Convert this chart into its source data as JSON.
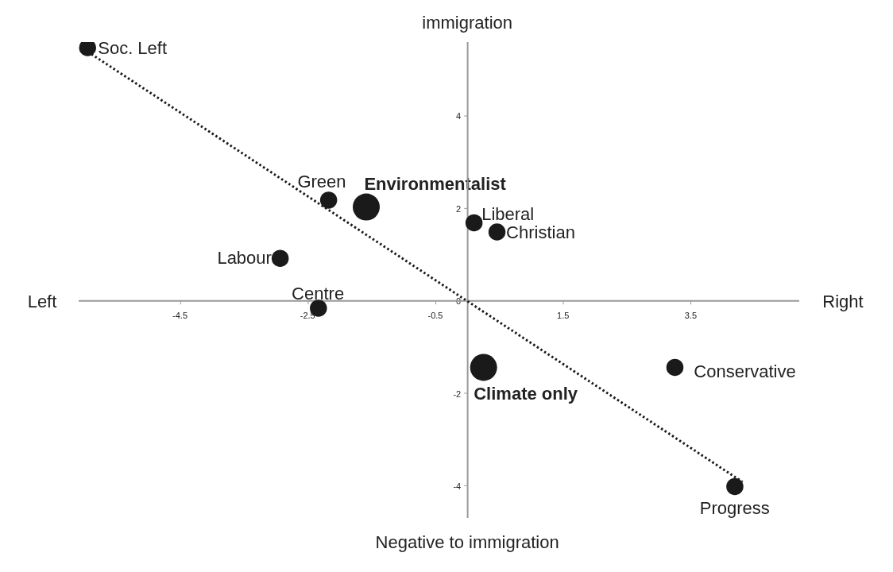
{
  "chart_data": {
    "type": "bubble",
    "xlim": [
      -6.1,
      5.2
    ],
    "ylim": [
      -4.7,
      5.6
    ],
    "xticks": [
      -4.5,
      -2.5,
      -0.5,
      1.5,
      3.5
    ],
    "yticks": [
      -4,
      -2,
      0,
      2,
      4
    ],
    "grid": false,
    "marker": "circle",
    "series": [
      {
        "color": "#1a1a1a",
        "x": [
          -5.96,
          -2.18,
          -1.59,
          -2.94,
          -2.34,
          0.1,
          0.46,
          0.25,
          3.25,
          4.19
        ],
        "values": [
          5.48,
          2.18,
          2.03,
          0.92,
          -0.16,
          1.69,
          1.49,
          -1.44,
          -1.44,
          -4.02
        ],
        "sizes": [
          0.4,
          0.4,
          1,
          0.4,
          0.4,
          0.4,
          0.4,
          1,
          0.4,
          0.4
        ]
      },
      {
        "type": "line",
        "color": "#1a1a1a",
        "line_style": "dotted",
        "marker": "none",
        "x": [
          -5.9,
          4.31
        ],
        "values": [
          5.34,
          -3.92
        ]
      }
    ],
    "annotations": [
      {
        "text": "Soc. Left",
        "x": -5.96,
        "y": 5.48
      },
      {
        "text": "Green",
        "x": -2.18,
        "y": 2.18
      },
      {
        "text": "Environmentalist",
        "x": -1.59,
        "y": 2.03
      },
      {
        "text": "Labour",
        "x": -2.94,
        "y": 0.92
      },
      {
        "text": "Centre",
        "x": -2.34,
        "y": -0.16
      },
      {
        "text": "Liberal",
        "x": 0.1,
        "y": 1.69
      },
      {
        "text": "Christian",
        "x": 0.46,
        "y": 1.49
      },
      {
        "text": "Climate only",
        "x": 0.25,
        "y": -1.44
      },
      {
        "text": "Conservative",
        "x": 3.25,
        "y": -1.44
      },
      {
        "text": "Progress",
        "x": 4.19,
        "y": -4.02
      },
      "Left",
      "Right",
      "immigration",
      "Negative to immigration"
    ]
  }
}
